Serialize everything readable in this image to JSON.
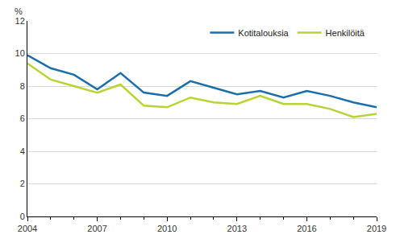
{
  "chart_data": {
    "type": "line",
    "y_label": "%",
    "x": [
      2004,
      2005,
      2006,
      2007,
      2008,
      2009,
      2010,
      2011,
      2012,
      2013,
      2014,
      2015,
      2016,
      2017,
      2018,
      2019
    ],
    "series": [
      {
        "name": "Kotitalouksia",
        "color": "#1b6fa8",
        "values": [
          9.9,
          9.1,
          8.7,
          7.8,
          8.8,
          7.6,
          7.4,
          8.3,
          7.9,
          7.5,
          7.7,
          7.3,
          7.7,
          7.4,
          7.0,
          6.7
        ]
      },
      {
        "name": "Henkilöitä",
        "color": "#b7d433",
        "values": [
          9.4,
          8.4,
          8.0,
          7.6,
          8.1,
          6.8,
          6.7,
          7.3,
          7.0,
          6.9,
          7.4,
          6.9,
          6.9,
          6.6,
          6.1,
          6.3
        ]
      }
    ],
    "xlim": [
      2004,
      2019
    ],
    "xticks": [
      2004,
      2007,
      2010,
      2013,
      2016,
      2019
    ],
    "ylim": [
      0,
      12
    ],
    "yticks": [
      0,
      2,
      4,
      6,
      8,
      10,
      12
    ],
    "grid": true,
    "legend": "top-right"
  }
}
